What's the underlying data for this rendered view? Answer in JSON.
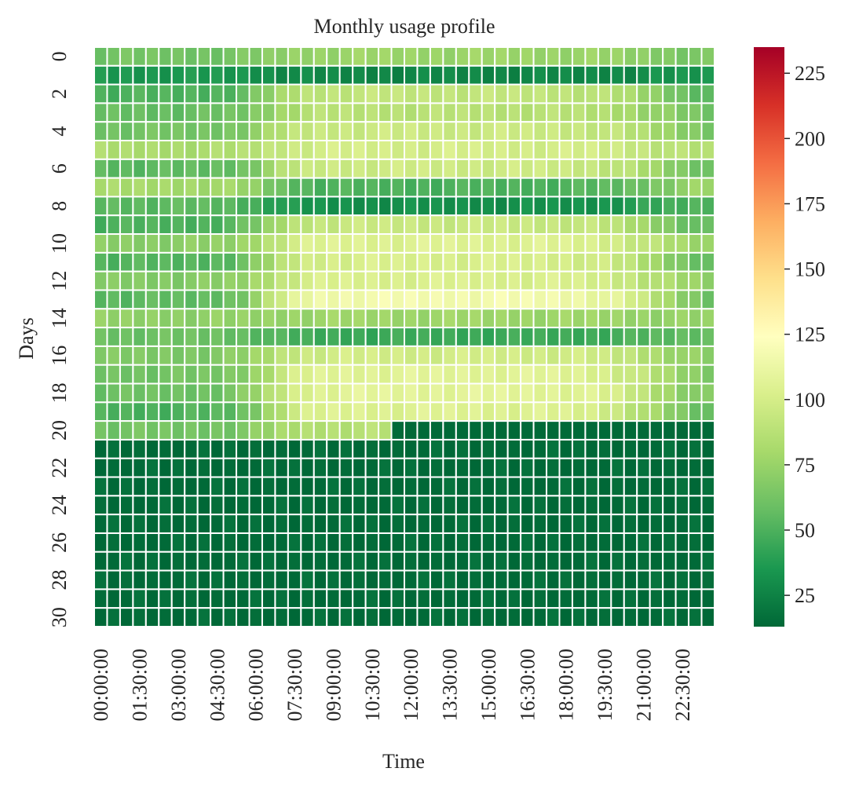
{
  "chart_data": {
    "type": "heatmap",
    "title": "Monthly usage profile",
    "xlabel": "Time",
    "ylabel": "Days",
    "colormap": "RdYlGn_r",
    "colormap_stops": [
      "#006837",
      "#1a9850",
      "#66bd63",
      "#a6d96a",
      "#d9ef8b",
      "#ffffbf",
      "#fee08b",
      "#fdae61",
      "#f46d43",
      "#d73027",
      "#a50026"
    ],
    "vmin": 13,
    "vmax": 235,
    "cell_border_color": "#ffffff",
    "n_rows": 31,
    "n_cols": 48,
    "row_labels": [
      0,
      2,
      4,
      6,
      8,
      10,
      12,
      14,
      16,
      18,
      20,
      22,
      24,
      26,
      28,
      30
    ],
    "col_labels": [
      "00:00:00",
      "01:30:00",
      "03:00:00",
      "04:30:00",
      "06:00:00",
      "07:30:00",
      "09:00:00",
      "10:30:00",
      "12:00:00",
      "13:30:00",
      "15:00:00",
      "16:30:00",
      "18:00:00",
      "19:30:00",
      "21:00:00",
      "22:30:00"
    ],
    "colorbar_ticks": [
      25,
      50,
      75,
      100,
      125,
      150,
      175,
      200,
      225
    ],
    "day_profiles": [
      {
        "base": 62,
        "amp": 14
      },
      {
        "base": 35,
        "amp": -8
      },
      {
        "base": 50,
        "amp": 42
      },
      {
        "base": 58,
        "amp": 30
      },
      {
        "base": 62,
        "amp": 34
      },
      {
        "base": 82,
        "amp": 18
      },
      {
        "base": 55,
        "amp": 42
      },
      {
        "base": 80,
        "amp": -30
      },
      {
        "base": 55,
        "amp": -24
      },
      {
        "base": 50,
        "amp": 45
      },
      {
        "base": 70,
        "amp": 35
      },
      {
        "base": 52,
        "amp": 50
      },
      {
        "base": 68,
        "amp": 35
      },
      {
        "base": 55,
        "amp": 62
      },
      {
        "base": 72,
        "amp": 5
      },
      {
        "base": 60,
        "amp": -15
      },
      {
        "base": 66,
        "amp": 33
      },
      {
        "base": 62,
        "amp": 45
      },
      {
        "base": 60,
        "amp": 48
      },
      {
        "base": 50,
        "amp": 55
      },
      {
        "base": 62,
        "amp": 25,
        "cutoff": 23
      },
      {
        "base": 14,
        "amp": 0
      },
      {
        "base": 14,
        "amp": 0
      },
      {
        "base": 14,
        "amp": 0
      },
      {
        "base": 14,
        "amp": 0
      },
      {
        "base": 14,
        "amp": 0
      },
      {
        "base": 14,
        "amp": 0
      },
      {
        "base": 14,
        "amp": 0
      },
      {
        "base": 14,
        "amp": 0
      },
      {
        "base": 14,
        "amp": 0
      },
      {
        "base": 14,
        "amp": 0
      }
    ]
  }
}
